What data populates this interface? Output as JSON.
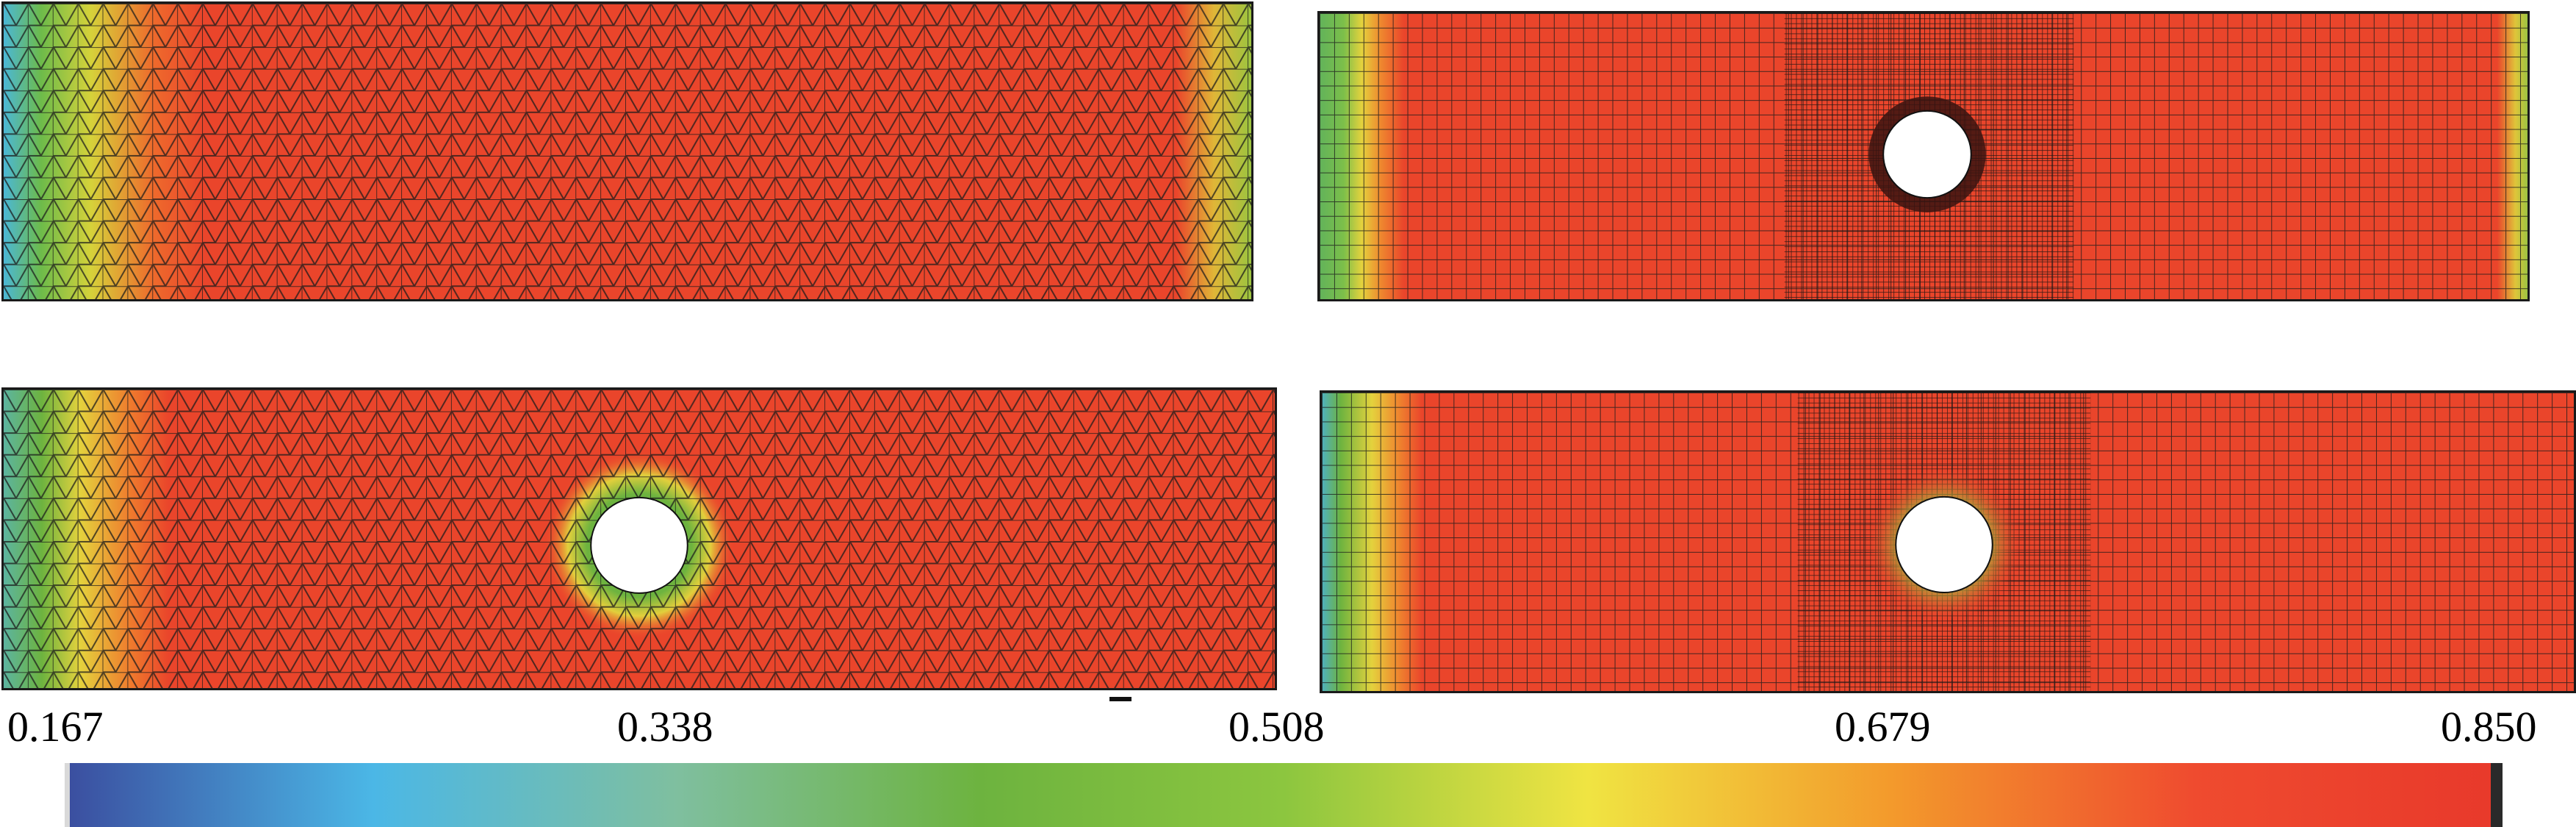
{
  "figure": {
    "panels": [
      {
        "id": "tl",
        "mesh": "triangular",
        "hole": false
      },
      {
        "id": "tr",
        "mesh": "quadrilateral",
        "hole": true
      },
      {
        "id": "bl",
        "mesh": "triangular",
        "hole": true
      },
      {
        "id": "br",
        "mesh": "quadrilateral",
        "hole": true
      }
    ],
    "colorbar": {
      "min": 0.167,
      "max": 0.85,
      "tick_labels": [
        "0.167",
        "0.338",
        "0.508",
        "0.679",
        "0.850"
      ],
      "colors": [
        "#3b4fa0",
        "#4bb7e6",
        "#7fbf9f",
        "#6db33f",
        "#8cc63f",
        "#f0e442",
        "#f39a2c",
        "#ef4b2f",
        "#e8392b"
      ]
    }
  }
}
